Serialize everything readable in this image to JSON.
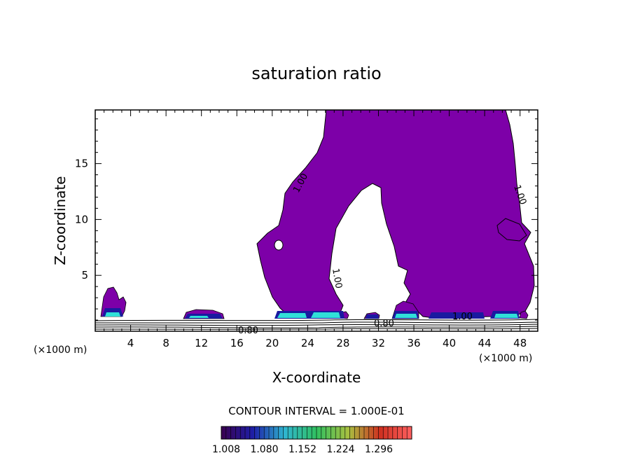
{
  "chart_data": {
    "type": "contour",
    "title": "saturation ratio",
    "xlabel": "X-coordinate",
    "ylabel": "Z-coordinate",
    "x_unit": "(×1000 m)",
    "xlim": [
      0,
      50
    ],
    "ylim": [
      0,
      19.8
    ],
    "xticks": [
      4,
      8,
      12,
      16,
      20,
      24,
      28,
      32,
      36,
      40,
      44,
      48
    ],
    "yticks": [
      5,
      10,
      15
    ],
    "contour_interval_label": "CONTOUR INTERVAL = 1.000E-01",
    "contour_labels": [
      "1.00",
      "1.00",
      "1.00",
      "1.00",
      "0.80",
      "0.80"
    ],
    "colorbar_ticks": [
      "1.008",
      "1.080",
      "1.152",
      "1.224",
      "1.296"
    ],
    "colors": {
      "supersaturated_fill": "#7d00a8",
      "dark_blue": "#1a1aa0",
      "cyan": "#30e0d8",
      "colorbar_stops": [
        "#3a0050",
        "#1e1ea8",
        "#2fb6d0",
        "#30c060",
        "#a8c040",
        "#d03020",
        "#ff6060"
      ]
    }
  }
}
